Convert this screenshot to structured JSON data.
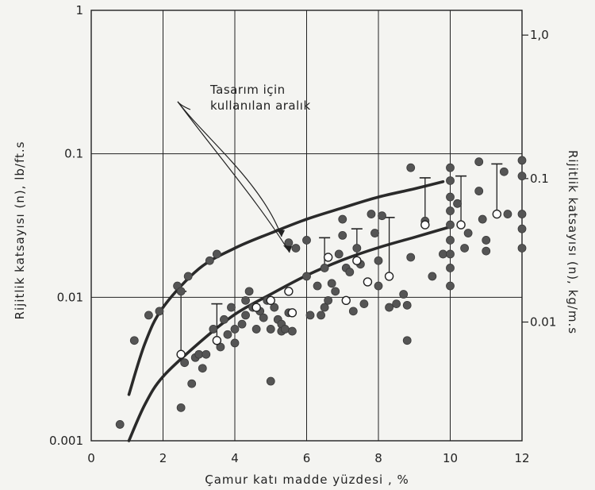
{
  "chart_data": {
    "type": "scatter",
    "x_axis": {
      "label": "Çamur katı madde yüzdesi , %",
      "range": [
        0,
        12
      ],
      "ticks": [
        0,
        2,
        4,
        6,
        8,
        10,
        12
      ],
      "tick_labels": [
        "0",
        "2",
        "4",
        "6",
        "8",
        "10",
        "12"
      ]
    },
    "y_axis_left": {
      "label": "Rijitlik katsayısı (n), lb/ft.s",
      "scale": "log",
      "range": [
        0.001,
        1
      ],
      "ticks": [
        0.001,
        0.01,
        0.1,
        1
      ],
      "tick_labels": [
        "0.001",
        "0.01",
        "0.1",
        "1"
      ]
    },
    "y_axis_right": {
      "label": "Rijitlik katsayısı (n), kg/m.s",
      "scale": "log",
      "ticks": [
        1.0,
        0.1,
        0.01
      ],
      "tick_labels": [
        "1,0",
        "0.1",
        "0.01"
      ]
    },
    "grid": true,
    "annotation": {
      "lines": [
        "Tasarım için",
        "kullanılan aralık"
      ]
    },
    "series": [
      {
        "marker": "filled-circle",
        "points": [
          [
            0.8,
            0.0013
          ],
          [
            1.2,
            0.005
          ],
          [
            1.6,
            0.0075
          ],
          [
            1.9,
            0.008
          ],
          [
            2.4,
            0.012
          ],
          [
            2.5,
            0.011
          ],
          [
            2.5,
            0.0017
          ],
          [
            2.7,
            0.014
          ],
          [
            2.8,
            0.0025
          ],
          [
            2.6,
            0.0035
          ],
          [
            2.9,
            0.0038
          ],
          [
            3.0,
            0.004
          ],
          [
            3.1,
            0.0032
          ],
          [
            3.2,
            0.004
          ],
          [
            3.3,
            0.018
          ],
          [
            3.5,
            0.02
          ],
          [
            3.4,
            0.006
          ],
          [
            3.5,
            0.005
          ],
          [
            3.6,
            0.0045
          ],
          [
            3.7,
            0.007
          ],
          [
            3.8,
            0.0055
          ],
          [
            3.9,
            0.0085
          ],
          [
            4.0,
            0.0048
          ],
          [
            4.0,
            0.006
          ],
          [
            4.2,
            0.0065
          ],
          [
            4.3,
            0.0075
          ],
          [
            4.3,
            0.0095
          ],
          [
            4.4,
            0.011
          ],
          [
            4.5,
            0.0085
          ],
          [
            4.6,
            0.006
          ],
          [
            4.7,
            0.008
          ],
          [
            4.8,
            0.0072
          ],
          [
            4.9,
            0.0095
          ],
          [
            5.0,
            0.006
          ],
          [
            5.0,
            0.0026
          ],
          [
            5.1,
            0.0085
          ],
          [
            5.2,
            0.007
          ],
          [
            5.3,
            0.0065
          ],
          [
            5.3,
            0.0058
          ],
          [
            5.4,
            0.006
          ],
          [
            5.5,
            0.0078
          ],
          [
            5.6,
            0.0058
          ],
          [
            5.5,
            0.024
          ],
          [
            5.7,
            0.022
          ],
          [
            6.0,
            0.025
          ],
          [
            6.0,
            0.014
          ],
          [
            6.1,
            0.0075
          ],
          [
            6.3,
            0.012
          ],
          [
            6.4,
            0.0075
          ],
          [
            6.5,
            0.0085
          ],
          [
            6.5,
            0.016
          ],
          [
            6.6,
            0.0095
          ],
          [
            6.7,
            0.0125
          ],
          [
            6.8,
            0.011
          ],
          [
            6.9,
            0.02
          ],
          [
            7.0,
            0.035
          ],
          [
            7.0,
            0.027
          ],
          [
            7.1,
            0.016
          ],
          [
            7.2,
            0.015
          ],
          [
            7.3,
            0.008
          ],
          [
            7.4,
            0.022
          ],
          [
            7.5,
            0.017
          ],
          [
            7.6,
            0.009
          ],
          [
            7.8,
            0.038
          ],
          [
            7.9,
            0.028
          ],
          [
            8.0,
            0.018
          ],
          [
            8.0,
            0.012
          ],
          [
            8.1,
            0.037
          ],
          [
            8.3,
            0.0085
          ],
          [
            8.5,
            0.009
          ],
          [
            8.7,
            0.0105
          ],
          [
            8.8,
            0.005
          ],
          [
            8.8,
            0.0088
          ],
          [
            8.9,
            0.08
          ],
          [
            8.9,
            0.019
          ],
          [
            9.3,
            0.034
          ],
          [
            9.5,
            0.014
          ],
          [
            9.8,
            0.02
          ],
          [
            10.0,
            0.08
          ],
          [
            10.0,
            0.065
          ],
          [
            10.0,
            0.05
          ],
          [
            10.0,
            0.04
          ],
          [
            10.0,
            0.032
          ],
          [
            10.0,
            0.025
          ],
          [
            10.0,
            0.02
          ],
          [
            10.0,
            0.016
          ],
          [
            10.0,
            0.012
          ],
          [
            10.2,
            0.045
          ],
          [
            10.4,
            0.022
          ],
          [
            10.5,
            0.028
          ],
          [
            10.8,
            0.088
          ],
          [
            10.8,
            0.055
          ],
          [
            10.9,
            0.035
          ],
          [
            11.0,
            0.025
          ],
          [
            11.0,
            0.021
          ],
          [
            11.5,
            0.075
          ],
          [
            11.6,
            0.038
          ],
          [
            12.0,
            0.09
          ],
          [
            12.0,
            0.07
          ],
          [
            12.0,
            0.038
          ],
          [
            12.0,
            0.03
          ],
          [
            12.0,
            0.022
          ]
        ]
      },
      {
        "marker": "open-circle",
        "points": [
          [
            2.5,
            0.004
          ],
          [
            3.5,
            0.005
          ],
          [
            4.6,
            0.0085
          ],
          [
            5.0,
            0.0095
          ],
          [
            5.5,
            0.011
          ],
          [
            5.6,
            0.0078
          ],
          [
            6.6,
            0.019
          ],
          [
            7.1,
            0.0095
          ],
          [
            7.4,
            0.018
          ],
          [
            7.7,
            0.0128
          ],
          [
            8.3,
            0.014
          ],
          [
            9.3,
            0.032
          ],
          [
            10.3,
            0.032
          ],
          [
            11.3,
            0.038
          ]
        ]
      }
    ],
    "error_bars": [
      {
        "x": 2.5,
        "low": 0.004,
        "high": 0.011
      },
      {
        "x": 3.5,
        "low": 0.005,
        "high": 0.009
      },
      {
        "x": 6.5,
        "low": 0.016,
        "high": 0.026
      },
      {
        "x": 7.4,
        "low": 0.018,
        "high": 0.03
      },
      {
        "x": 8.3,
        "low": 0.014,
        "high": 0.036
      },
      {
        "x": 9.3,
        "low": 0.032,
        "high": 0.068
      },
      {
        "x": 10.3,
        "low": 0.032,
        "high": 0.07
      },
      {
        "x": 11.3,
        "low": 0.038,
        "high": 0.085
      }
    ],
    "curves": [
      {
        "points": [
          [
            1.05,
            0.0021
          ],
          [
            1.5,
            0.0048
          ],
          [
            2,
            0.0085
          ],
          [
            3,
            0.0158
          ],
          [
            4,
            0.022
          ],
          [
            5,
            0.028
          ],
          [
            6,
            0.035
          ],
          [
            7,
            0.042
          ],
          [
            8,
            0.05
          ],
          [
            9,
            0.057
          ],
          [
            9.8,
            0.064
          ]
        ]
      },
      {
        "points": [
          [
            1.05,
            0.001
          ],
          [
            1.5,
            0.0018
          ],
          [
            2,
            0.0028
          ],
          [
            3,
            0.0048
          ],
          [
            4,
            0.0076
          ],
          [
            5,
            0.0105
          ],
          [
            6,
            0.0142
          ],
          [
            7,
            0.0182
          ],
          [
            8,
            0.0222
          ],
          [
            9,
            0.0262
          ],
          [
            10,
            0.031
          ]
        ]
      }
    ]
  }
}
